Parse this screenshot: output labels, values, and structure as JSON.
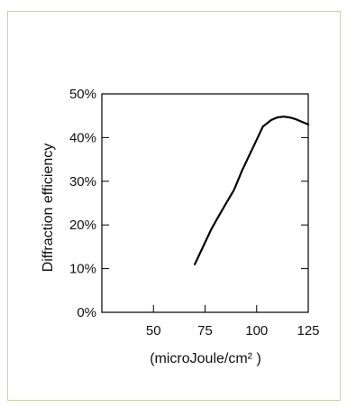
{
  "chart_data": {
    "type": "line",
    "ylabel": "Diffraction efficiency",
    "xlabel": "(microJoule/cm² )",
    "xlim": [
      25,
      125
    ],
    "ylim": [
      0,
      50
    ],
    "x_ticks": [
      50,
      75,
      100,
      125
    ],
    "x_tick_labels": [
      "50",
      "75",
      "100",
      "125"
    ],
    "y_ticks": [
      0,
      10,
      20,
      30,
      40,
      50
    ],
    "y_tick_labels": [
      "0%",
      "10%",
      "20%",
      "30%",
      "40%",
      "50%"
    ],
    "grid": false,
    "series": [
      {
        "color": "#000000",
        "x": [
          70,
          75,
          78,
          81,
          85,
          89,
          93,
          97,
          100,
          103,
          107,
          110,
          113,
          116,
          119,
          122,
          125
        ],
        "y": [
          11,
          16,
          19,
          21.5,
          24.8,
          28,
          32.5,
          36.5,
          39.5,
          42.5,
          44,
          44.6,
          44.8,
          44.6,
          44.2,
          43.6,
          43
        ]
      }
    ]
  }
}
